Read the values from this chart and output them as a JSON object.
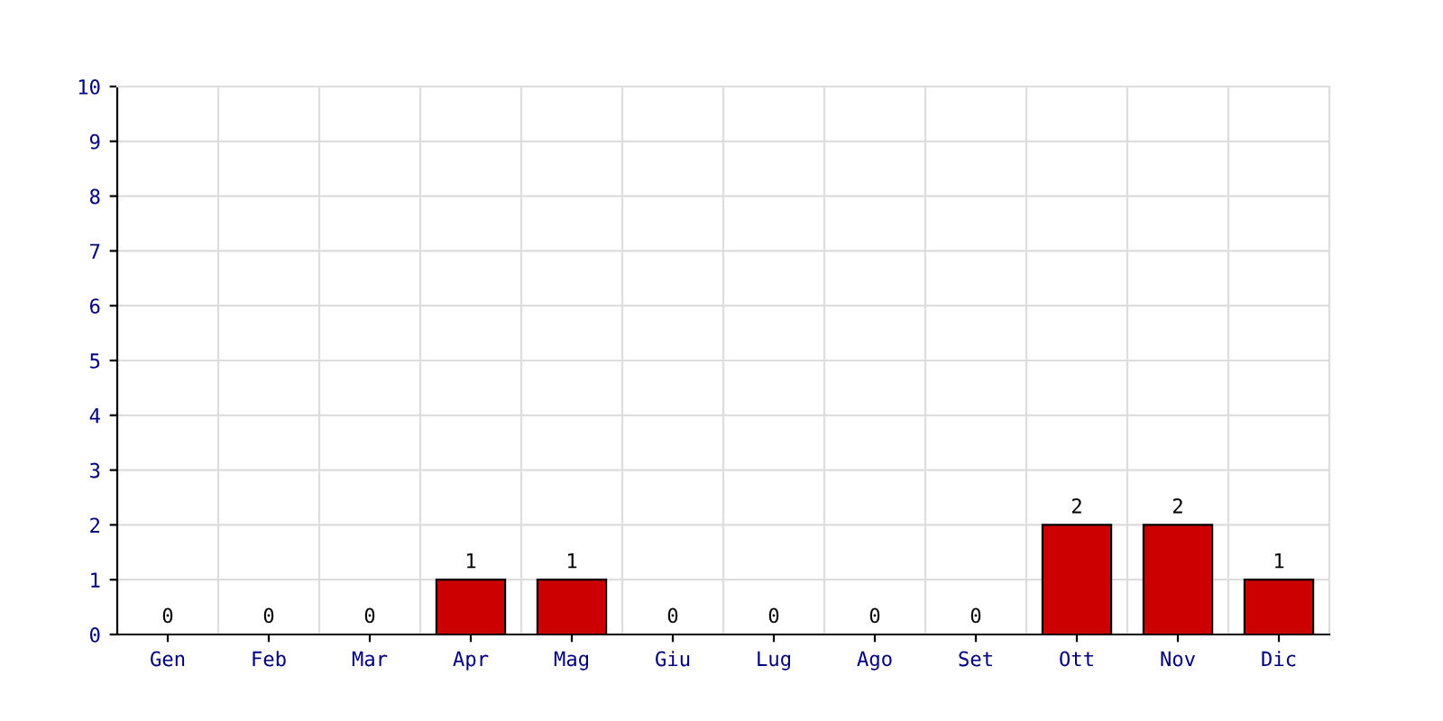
{
  "chart_data": {
    "type": "bar",
    "categories": [
      "Gen",
      "Feb",
      "Mar",
      "Apr",
      "Mag",
      "Giu",
      "Lug",
      "Ago",
      "Set",
      "Ott",
      "Nov",
      "Dic"
    ],
    "values": [
      0,
      0,
      0,
      1,
      1,
      0,
      0,
      0,
      0,
      2,
      2,
      1
    ],
    "color": "#cc0000",
    "ylim": [
      0,
      10
    ],
    "yticks": [
      0,
      1,
      2,
      3,
      4,
      5,
      6,
      7,
      8,
      9,
      10
    ],
    "grid": true,
    "data_labels": true
  }
}
